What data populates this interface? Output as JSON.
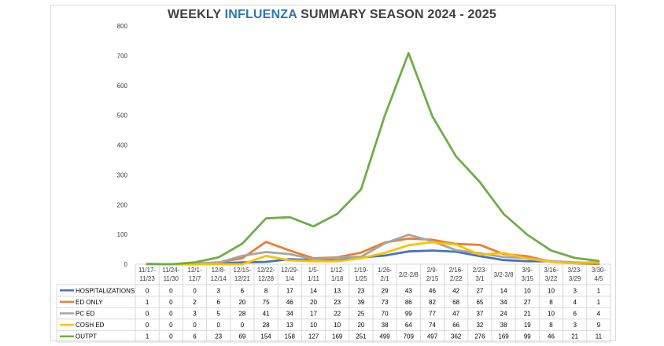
{
  "title": {
    "part1": "WEEKLY ",
    "part2": "INFLUENZA",
    "part3": " SUMMARY SEASON 2024 - 2025"
  },
  "chart_data": {
    "type": "line",
    "title": "WEEKLY INFLUENZA SUMMARY SEASON 2024 - 2025",
    "ylim": [
      0,
      800
    ],
    "yticks": [
      0,
      100,
      200,
      300,
      400,
      500,
      600,
      700,
      800
    ],
    "grid": false,
    "legend": "data-table-below",
    "categories": [
      [
        "11/17-",
        "11/23"
      ],
      [
        "11/24-",
        "11/30"
      ],
      [
        "12/1-",
        "12/7"
      ],
      [
        "12/8-",
        "12/14"
      ],
      [
        "12/15-",
        "12/21"
      ],
      [
        "12/22-",
        "12/28"
      ],
      [
        "12/29-",
        "1/4"
      ],
      [
        "1/5-",
        "1/11"
      ],
      [
        "1/12-",
        "1/18"
      ],
      [
        "1/19-",
        "1/25"
      ],
      [
        "1/26-",
        "2/1"
      ],
      [
        "2/2-2/8"
      ],
      [
        "2/9-",
        "2/15"
      ],
      [
        "2/16-",
        "2/22"
      ],
      [
        "2/23-",
        "3/1"
      ],
      [
        "3/2-3/8"
      ],
      [
        "3/9-",
        "3/15"
      ],
      [
        "3/16-",
        "3/22"
      ],
      [
        "3/23-",
        "3/29"
      ],
      [
        "3/30-",
        "4/5"
      ]
    ],
    "series": [
      {
        "name": "HOSPITALIZATIONS",
        "color": "#4472c4",
        "values": [
          0,
          0,
          0,
          3,
          6,
          8,
          17,
          14,
          13,
          23,
          29,
          43,
          46,
          42,
          27,
          14,
          10,
          10,
          3,
          1
        ]
      },
      {
        "name": "ED ONLY",
        "color": "#ed7d31",
        "values": [
          1,
          0,
          2,
          6,
          20,
          75,
          46,
          20,
          23,
          39,
          73,
          86,
          82,
          68,
          65,
          34,
          27,
          8,
          4,
          1
        ]
      },
      {
        "name": "PC ED",
        "color": "#a5a5a5",
        "values": [
          0,
          0,
          3,
          5,
          28,
          41,
          34,
          17,
          22,
          25,
          70,
          99,
          77,
          47,
          37,
          24,
          21,
          10,
          6,
          4
        ]
      },
      {
        "name": "COSH ED",
        "color": "#ffc000",
        "values": [
          0,
          0,
          0,
          0,
          0,
          28,
          13,
          10,
          10,
          20,
          38,
          64,
          74,
          66,
          32,
          38,
          19,
          8,
          3,
          9
        ]
      },
      {
        "name": "OUTPT",
        "color": "#70ad47",
        "values": [
          1,
          0,
          6,
          23,
          69,
          154,
          158,
          127,
          169,
          251,
          499,
          709,
          497,
          362,
          276,
          169,
          99,
          46,
          21,
          11
        ]
      }
    ]
  }
}
